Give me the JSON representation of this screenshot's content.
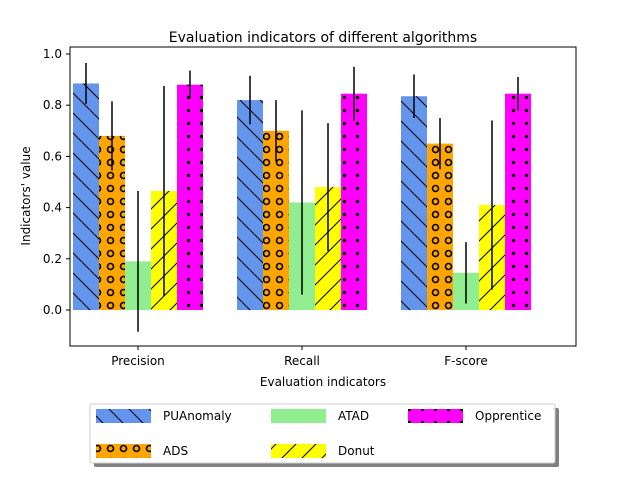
{
  "chart_data": {
    "type": "bar",
    "title": "Evaluation indicators of different algorithms",
    "xlabel": "Evaluation indicators",
    "ylabel": "Indicators' value",
    "categories": [
      "Precision",
      "Recall",
      "F-score"
    ],
    "ylim": [
      -0.14,
      1.01
    ],
    "yticks": [
      "0.0",
      "0.2",
      "0.4",
      "0.6",
      "0.8",
      "1.0"
    ],
    "ytick_values": [
      0.0,
      0.2,
      0.4,
      0.6,
      0.8,
      1.0
    ],
    "grid": false,
    "legend_position": "bottom",
    "series": [
      {
        "name": "PUAnomaly",
        "color": "#6495ed",
        "hatch": "backslash",
        "values": [
          0.885,
          0.82,
          0.835
        ],
        "err": [
          0.08,
          0.095,
          0.085
        ]
      },
      {
        "name": "ADS",
        "color": "#ffa500",
        "hatch": "circles",
        "values": [
          0.68,
          0.7,
          0.65
        ],
        "err": [
          0.135,
          0.12,
          0.1
        ]
      },
      {
        "name": "ATAD",
        "color": "#90ee90",
        "hatch": "none",
        "values": [
          0.19,
          0.42,
          0.145
        ],
        "err": [
          0.275,
          0.36,
          0.12
        ]
      },
      {
        "name": "Donut",
        "color": "#ffff00",
        "hatch": "slash",
        "values": [
          0.465,
          0.48,
          0.41
        ],
        "err": [
          0.41,
          0.25,
          0.33
        ]
      },
      {
        "name": "Opprentice",
        "color": "#ff00ff",
        "hatch": "dots",
        "values": [
          0.88,
          0.845,
          0.845
        ],
        "err": [
          0.055,
          0.105,
          0.065
        ]
      }
    ]
  }
}
